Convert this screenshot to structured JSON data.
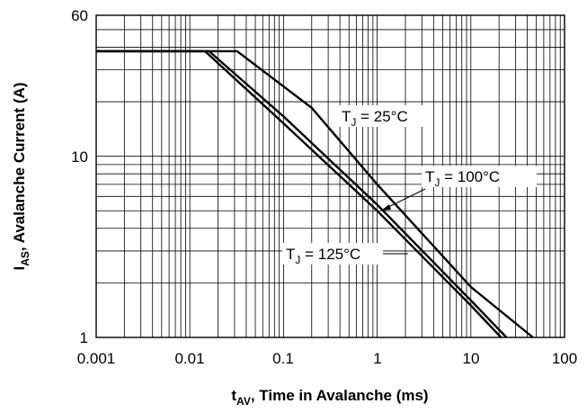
{
  "chart_data": {
    "type": "line",
    "x_scale": "log",
    "y_scale": "log",
    "xlim": [
      0.001,
      100
    ],
    "ylim": [
      1,
      60
    ],
    "grid": true,
    "x_ticks": [
      "0.001",
      "0.01",
      "0.1",
      "1",
      "10",
      "100"
    ],
    "y_ticks": [
      "60",
      "10",
      "1"
    ],
    "xlabel": {
      "main": "t",
      "sub": "AV",
      "rest": ", Time in Avalanche (ms)"
    },
    "ylabel": {
      "main": "I",
      "sub": "AS",
      "rest": ", Avalanche Current (A)"
    },
    "series": [
      {
        "name": {
          "main": "T",
          "sub": "J",
          "rest": " = 25°C"
        },
        "x": [
          0.001,
          0.032,
          0.2,
          1.0,
          10.0,
          46.0
        ],
        "y": [
          38,
          38,
          18.5,
          7.0,
          1.9,
          1.0
        ]
      },
      {
        "name": {
          "main": "T",
          "sub": "J",
          "rest": " = 100°C"
        },
        "x": [
          0.001,
          0.016,
          0.1,
          1.0,
          10.0,
          24.0
        ],
        "y": [
          38,
          38,
          16.6,
          5.4,
          1.6,
          1.0
        ]
      },
      {
        "name": {
          "main": "T",
          "sub": "J",
          "rest": " = 125°C"
        },
        "x": [
          0.001,
          0.0145,
          0.1,
          1.0,
          10.0,
          21.0
        ],
        "y": [
          38,
          38,
          15.2,
          5.0,
          1.5,
          1.0
        ]
      }
    ]
  }
}
